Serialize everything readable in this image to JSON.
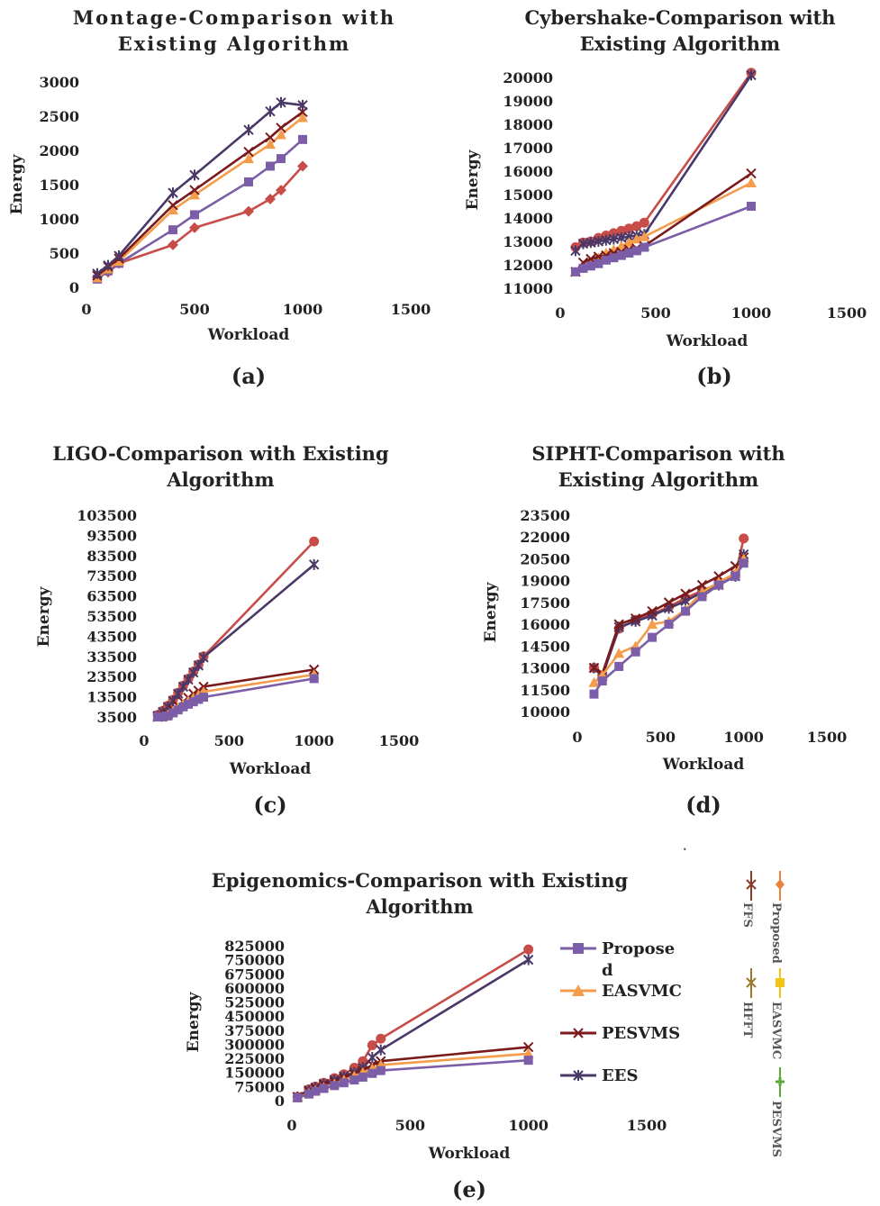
{
  "colors": {
    "Proposed": "#7b5ea7",
    "EASVMC": "#f39c4b",
    "PESVMS": "#7a1a1a",
    "EES": "#4a3868",
    "Red": "#c84c48",
    "side_proposed": "#e8823a",
    "side_ffs": "#8b3a28",
    "side_easvmc": "#f2c414",
    "side_hfft": "#9a7a2a",
    "side_pesvms": "#5aaa3a"
  },
  "legend": {
    "items": [
      {
        "label": [
          "Propose",
          "d"
        ],
        "color_key": "Proposed",
        "marker": "square"
      },
      {
        "label": [
          "EASVMC"
        ],
        "color_key": "EASVMC",
        "marker": "triangle"
      },
      {
        "label": [
          "PESVMS"
        ],
        "color_key": "PESVMS",
        "marker": "x"
      },
      {
        "label": [
          "EES"
        ],
        "color_key": "EES",
        "marker": "star"
      }
    ]
  },
  "side_legend": {
    "items": [
      {
        "label": "Proposed",
        "color_key": "side_proposed"
      },
      {
        "label": "FFS",
        "color_key": "side_ffs"
      },
      {
        "label": "EASVMC",
        "color_key": "side_easvmc"
      },
      {
        "label": "HFFT",
        "color_key": "side_hfft"
      },
      {
        "label": "PESVMS",
        "color_key": "side_pesvms"
      }
    ],
    "dot": "."
  },
  "chart_data": [
    {
      "id": "a",
      "type": "line",
      "title": [
        "Montage-Comparison with",
        "Existing Algorithm"
      ],
      "xlabel": "Workload",
      "ylabel": "Energy",
      "panel_label": "(a)",
      "xlim": [
        0,
        1500
      ],
      "ylim": [
        0,
        3000
      ],
      "xticks": [
        "0",
        "500",
        "1000",
        "1500"
      ],
      "yticks": [
        "0",
        "500",
        "1000",
        "1500",
        "2000",
        "2500",
        "3000"
      ],
      "series": [
        {
          "color_key": "Red",
          "marker": "diamond",
          "x": [
            50,
            100,
            150,
            400,
            500,
            750,
            850,
            900,
            1000
          ],
          "y": [
            150,
            220,
            350,
            620,
            870,
            1110,
            1290,
            1420,
            1770
          ]
        },
        {
          "color_key": "Proposed",
          "marker": "square",
          "x": [
            50,
            100,
            150,
            400,
            500,
            750,
            850,
            900,
            1000
          ],
          "y": [
            120,
            240,
            350,
            840,
            1060,
            1540,
            1770,
            1880,
            2160
          ]
        },
        {
          "color_key": "EASVMC",
          "marker": "triangle",
          "x": [
            50,
            100,
            150,
            400,
            500,
            750,
            850,
            900,
            1000
          ],
          "y": [
            140,
            270,
            380,
            1130,
            1350,
            1880,
            2090,
            2230,
            2480
          ]
        },
        {
          "color_key": "PESVMS",
          "marker": "x",
          "x": [
            50,
            100,
            150,
            400,
            500,
            750,
            850,
            900,
            1000
          ],
          "y": [
            170,
            300,
            420,
            1200,
            1420,
            1980,
            2190,
            2330,
            2560
          ]
        },
        {
          "color_key": "EES",
          "marker": "star",
          "x": [
            50,
            100,
            150,
            400,
            500,
            750,
            850,
            900,
            1000
          ],
          "y": [
            200,
            320,
            460,
            1380,
            1640,
            2300,
            2570,
            2700,
            2660
          ]
        }
      ]
    },
    {
      "id": "b",
      "type": "line",
      "title": [
        "Cybershake-Comparison with",
        "Existing Algorithm"
      ],
      "xlabel": "Workload",
      "ylabel": "Energy",
      "panel_label": "(b)",
      "xlim": [
        0,
        1500
      ],
      "ylim": [
        11000,
        20000
      ],
      "xticks": [
        "0",
        "500",
        "1000",
        "1500"
      ],
      "yticks": [
        "11000",
        "12000",
        "13000",
        "14000",
        "15000",
        "16000",
        "17000",
        "18000",
        "19000",
        "20000"
      ],
      "series": [
        {
          "color_key": "Red",
          "marker": "circle",
          "x": [
            80,
            120,
            160,
            200,
            240,
            280,
            320,
            360,
            400,
            440,
            1000
          ],
          "y": [
            12750,
            12950,
            13000,
            13150,
            13250,
            13350,
            13450,
            13550,
            13650,
            13800,
            20200
          ]
        },
        {
          "color_key": "EES",
          "marker": "star",
          "x": [
            80,
            120,
            160,
            200,
            240,
            280,
            320,
            360,
            400,
            440,
            1000
          ],
          "y": [
            12600,
            12900,
            12950,
            13000,
            13050,
            13100,
            13150,
            13200,
            13250,
            13300,
            20100
          ]
        },
        {
          "color_key": "EASVMC",
          "marker": "triangle",
          "x": [
            80,
            120,
            160,
            200,
            240,
            280,
            320,
            360,
            400,
            440,
            1000
          ],
          "y": [
            11700,
            11950,
            12100,
            12300,
            12500,
            12650,
            12800,
            12950,
            13100,
            13200,
            15500
          ]
        },
        {
          "color_key": "PESVMS",
          "marker": "x",
          "x": [
            80,
            120,
            160,
            200,
            240,
            280,
            320,
            360,
            400,
            440,
            1000
          ],
          "y": [
            11700,
            12100,
            12250,
            12350,
            12400,
            12500,
            12550,
            12650,
            12700,
            12800,
            15900
          ]
        },
        {
          "color_key": "Proposed",
          "marker": "square",
          "x": [
            80,
            120,
            160,
            200,
            240,
            280,
            320,
            360,
            400,
            440,
            1000
          ],
          "y": [
            11700,
            11850,
            11950,
            12050,
            12200,
            12300,
            12400,
            12500,
            12600,
            12750,
            14500
          ]
        }
      ]
    },
    {
      "id": "c",
      "type": "line",
      "title": [
        "LIGO-Comparison with Existing",
        "Algorithm"
      ],
      "xlabel": "Workload",
      "ylabel": "Energy",
      "panel_label": "(c)",
      "xlim": [
        0,
        1500
      ],
      "ylim": [
        3500,
        103500
      ],
      "xticks": [
        "0",
        "500",
        "1000",
        "1500"
      ],
      "yticks": [
        "3500",
        "13500",
        "23500",
        "33500",
        "43500",
        "53500",
        "63500",
        "73500",
        "83500",
        "93500",
        "103500"
      ],
      "series": [
        {
          "color_key": "Red",
          "marker": "circle",
          "x": [
            80,
            110,
            140,
            170,
            200,
            230,
            260,
            290,
            320,
            350,
            1000
          ],
          "y": [
            4500,
            6500,
            9000,
            12000,
            15500,
            19000,
            22500,
            26000,
            29500,
            33500,
            90500
          ]
        },
        {
          "color_key": "EES",
          "marker": "star",
          "x": [
            80,
            110,
            140,
            170,
            200,
            230,
            260,
            290,
            320,
            350,
            1000
          ],
          "y": [
            4000,
            6000,
            8500,
            11500,
            15000,
            18500,
            22000,
            25500,
            29000,
            33000,
            79000
          ]
        },
        {
          "color_key": "PESVMS",
          "marker": "x",
          "x": [
            80,
            110,
            140,
            170,
            200,
            230,
            260,
            290,
            320,
            350,
            1000
          ],
          "y": [
            3500,
            3700,
            5000,
            7000,
            9000,
            11000,
            13000,
            15000,
            16500,
            18500,
            27000
          ]
        },
        {
          "color_key": "EASVMC",
          "marker": "triangle",
          "x": [
            80,
            110,
            140,
            170,
            200,
            230,
            260,
            290,
            320,
            350,
            1000
          ],
          "y": [
            3500,
            3600,
            4500,
            6200,
            8000,
            9800,
            11500,
            13000,
            14500,
            16000,
            24500
          ]
        },
        {
          "color_key": "Proposed",
          "marker": "square",
          "x": [
            80,
            110,
            140,
            170,
            200,
            230,
            260,
            290,
            320,
            350,
            1000
          ],
          "y": [
            3500,
            3500,
            4000,
            5500,
            7000,
            8500,
            9800,
            11000,
            12200,
            13300,
            22500
          ]
        }
      ]
    },
    {
      "id": "d",
      "type": "line",
      "title": [
        "SIPHT-Comparison with",
        "Existing Algorithm"
      ],
      "xlabel": "Workload",
      "ylabel": "Energy",
      "panel_label": "(d)",
      "xlim": [
        0,
        1500
      ],
      "ylim": [
        10000,
        23500
      ],
      "xticks": [
        "0",
        "500",
        "1000",
        "1500"
      ],
      "yticks": [
        "10000",
        "11500",
        "13000",
        "14500",
        "16000",
        "17500",
        "19000",
        "20500",
        "22000",
        "23500"
      ],
      "series": [
        {
          "color_key": "Red",
          "marker": "circle",
          "x": [
            100,
            150,
            250,
            350,
            450,
            550,
            650,
            750,
            850,
            950,
            1000
          ],
          "y": [
            13000,
            12500,
            15700,
            16300,
            16700,
            17200,
            17800,
            18300,
            18800,
            19400,
            21900
          ]
        },
        {
          "color_key": "EES",
          "marker": "star",
          "x": [
            100,
            150,
            250,
            350,
            450,
            550,
            650,
            750,
            850,
            950,
            1000
          ],
          "y": [
            13000,
            12400,
            15800,
            16200,
            16600,
            17100,
            17600,
            18200,
            18700,
            19300,
            20800
          ]
        },
        {
          "color_key": "PESVMS",
          "marker": "x",
          "x": [
            100,
            150,
            250,
            350,
            450,
            550,
            650,
            750,
            850,
            950,
            1000
          ],
          "y": [
            13000,
            12600,
            16000,
            16400,
            16900,
            17500,
            18100,
            18700,
            19300,
            20000,
            20600
          ]
        },
        {
          "color_key": "EASVMC",
          "marker": "triangle",
          "x": [
            100,
            150,
            250,
            350,
            450,
            550,
            650,
            750,
            850,
            950,
            1000
          ],
          "y": [
            12000,
            12500,
            14000,
            14500,
            16000,
            16200,
            17000,
            18200,
            18900,
            19500,
            20500
          ]
        },
        {
          "color_key": "Proposed",
          "marker": "square",
          "x": [
            100,
            150,
            250,
            350,
            450,
            550,
            650,
            750,
            850,
            950,
            1000
          ],
          "y": [
            11200,
            12100,
            13100,
            14100,
            15100,
            16000,
            16900,
            17900,
            18700,
            19300,
            20200
          ]
        }
      ]
    },
    {
      "id": "e",
      "type": "line",
      "title": [
        "Epigenomics-Comparison with Existing",
        "Algorithm"
      ],
      "xlabel": "Workload",
      "ylabel": "Energy",
      "panel_label": "(e)",
      "xlim": [
        0,
        1500
      ],
      "ylim": [
        0,
        825000
      ],
      "xticks": [
        "0",
        "500",
        "1000",
        "1500"
      ],
      "yticks": [
        "0",
        "75000",
        "150000",
        "225000",
        "300000",
        "375000",
        "450000",
        "525000",
        "600000",
        "675000",
        "750000",
        "825000"
      ],
      "series": [
        {
          "color_key": "Red",
          "marker": "circle",
          "x": [
            24,
            72,
            100,
            135,
            180,
            220,
            264,
            300,
            340,
            376,
            1000
          ],
          "y": [
            20000,
            60000,
            75000,
            95000,
            120000,
            140000,
            175000,
            210000,
            295000,
            330000,
            805000
          ]
        },
        {
          "color_key": "EES",
          "marker": "star",
          "x": [
            24,
            72,
            100,
            135,
            180,
            220,
            264,
            300,
            340,
            376,
            1000
          ],
          "y": [
            20000,
            55000,
            70000,
            90000,
            110000,
            130000,
            150000,
            175000,
            230000,
            270000,
            750000
          ]
        },
        {
          "color_key": "PESVMS",
          "marker": "x",
          "x": [
            24,
            72,
            100,
            135,
            180,
            220,
            264,
            300,
            340,
            376,
            1000
          ],
          "y": [
            20000,
            50000,
            65000,
            85000,
            100000,
            120000,
            140000,
            160000,
            190000,
            210000,
            285000
          ]
        },
        {
          "color_key": "EASVMC",
          "marker": "triangle",
          "x": [
            24,
            72,
            100,
            135,
            180,
            220,
            264,
            300,
            340,
            376,
            1000
          ],
          "y": [
            15000,
            40000,
            55000,
            70000,
            90000,
            110000,
            130000,
            150000,
            170000,
            190000,
            250000
          ]
        },
        {
          "color_key": "Proposed",
          "marker": "square",
          "x": [
            24,
            72,
            100,
            135,
            180,
            220,
            264,
            300,
            340,
            376,
            1000
          ],
          "y": [
            15000,
            35000,
            50000,
            65000,
            80000,
            95000,
            110000,
            125000,
            145000,
            160000,
            215000
          ]
        }
      ]
    }
  ]
}
